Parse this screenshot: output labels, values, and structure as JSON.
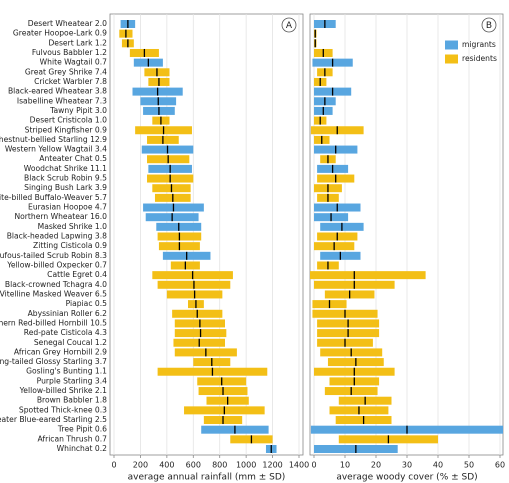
{
  "chart_data": [
    {
      "type": "range-bar",
      "panel": "A",
      "xlabel": "average annual rainfall (mm ± SD)",
      "categories": [
        "Desert Wheatear 2.0",
        "Greater Hoopoe-Lark 0.9",
        "Desert Lark 1.2",
        "Fulvous Babbler 1.2",
        "White Wagtail 0.7",
        "Great Grey Shrike 7.4",
        "Cricket Warbler 7.8",
        "Black-eared Wheatear 3.8",
        "Isabelline Wheatear 7.3",
        "Tawny Pipit 3.0",
        "Desert Cristicola 1.0",
        "Striped Kingfisher 0.9",
        "Chestnut-bellied Starling 12.9",
        "Western Yellow Wagtail 3.4",
        "Anteater Chat 0.5",
        "Woodchat Shrike 11.1",
        "Black Scrub Robin 9.5",
        "Singing Bush Lark 3.9",
        "White-billed Buffalo-Weaver 5.7",
        "Eurasian Hoopoe 4.7",
        "Northern Wheatear 16.0",
        "Masked Shrike 1.0",
        "Black-headed Lapwing 3.8",
        "Zitting Cisticola 0.9",
        "Rufous-tailed Scrub Robin 8.3",
        "Yellow-billed Oxpecker 0.7",
        "Cattle Egret 0.4",
        "Black-crowned Tchagra 4.0",
        "Vitelline Masked Weaver 6.5",
        "Piapiac 0.5",
        "Abyssinian Roller 6.2",
        "Northern Red-billed Hornbill 10.5",
        "Red-pate Cisticola 4.3",
        "Senegal Coucal 1.2",
        "African Grey Hornbill 2.9",
        "Long-tailed Glossy Starling 3.7",
        "Gosling's Bunting 1.1",
        "Purple Starling 3.4",
        "Yellow-billed Shrike 2.1",
        "Brown Babbler 1.8",
        "Spotted Thick-knee 0.3",
        "Greater Blue-eared Starling 2.5",
        "Tree Pipit 0.6",
        "African Thrush 0.7",
        "Whinchat 0.2"
      ],
      "series": [
        {
          "values": [
            105,
            null,
            null,
            null,
            260,
            null,
            null,
            330,
            335,
            340,
            null,
            null,
            null,
            405,
            null,
            425,
            null,
            null,
            null,
            450,
            440,
            490,
            null,
            null,
            550,
            null,
            null,
            null,
            null,
            null,
            null,
            null,
            null,
            null,
            null,
            null,
            null,
            null,
            null,
            null,
            null,
            null,
            915,
            null,
            1190
          ],
          "errors": [
            55,
            null,
            null,
            null,
            110,
            null,
            null,
            190,
            135,
            120,
            null,
            null,
            null,
            195,
            null,
            165,
            null,
            null,
            null,
            230,
            200,
            170,
            null,
            null,
            180,
            null,
            null,
            null,
            null,
            null,
            null,
            null,
            null,
            null,
            null,
            null,
            null,
            null,
            null,
            null,
            null,
            null,
            255,
            null,
            40
          ]
        },
        {
          "values": [
            null,
            90,
            105,
            230,
            null,
            325,
            340,
            null,
            null,
            null,
            355,
            375,
            370,
            null,
            410,
            null,
            425,
            435,
            445,
            null,
            null,
            null,
            495,
            495,
            null,
            540,
            595,
            605,
            610,
            620,
            630,
            650,
            655,
            645,
            695,
            740,
            745,
            815,
            825,
            860,
            835,
            825,
            null,
            1040,
            null
          ],
          "errors": [
            null,
            50,
            45,
            110,
            null,
            95,
            80,
            null,
            null,
            null,
            65,
            215,
            120,
            null,
            160,
            null,
            175,
            145,
            135,
            null,
            null,
            null,
            165,
            155,
            null,
            110,
            305,
            275,
            210,
            60,
            190,
            190,
            195,
            195,
            235,
            140,
            415,
            185,
            185,
            160,
            305,
            145,
            null,
            160,
            null
          ]
        }
      ],
      "xlim": [
        0,
        1400
      ],
      "xticks": [
        0,
        200,
        400,
        600,
        800,
        1000,
        1200,
        1400
      ],
      "grid": true
    },
    {
      "type": "range-bar",
      "panel": "B",
      "xlabel": "average woody cover (% ± SD)",
      "series": [
        {
          "name": "migrants",
          "color": "#58a6e0",
          "values": [
            3.5,
            null,
            null,
            null,
            6,
            null,
            null,
            6,
            3.5,
            3,
            null,
            null,
            null,
            7,
            null,
            6,
            null,
            null,
            null,
            7.5,
            5.5,
            9,
            null,
            null,
            8.5,
            null,
            null,
            null,
            null,
            null,
            null,
            null,
            null,
            null,
            null,
            null,
            null,
            null,
            null,
            null,
            null,
            null,
            30,
            null,
            13.5
          ],
          "errors": [
            3.5,
            null,
            null,
            null,
            6.5,
            null,
            null,
            6,
            3.5,
            3,
            null,
            null,
            null,
            7,
            null,
            5,
            null,
            null,
            null,
            7.5,
            5.5,
            7,
            null,
            null,
            6.5,
            null,
            null,
            null,
            null,
            null,
            null,
            null,
            null,
            null,
            null,
            null,
            null,
            null,
            null,
            null,
            null,
            null,
            31,
            null,
            13.5
          ]
        },
        {
          "name": "residents",
          "color": "#f3bf16",
          "values": [
            null,
            0.4,
            0.4,
            3,
            null,
            3.5,
            2,
            null,
            null,
            null,
            2,
            7.5,
            2.5,
            null,
            4.5,
            null,
            7,
            4.5,
            4.5,
            null,
            null,
            null,
            7.5,
            6.5,
            null,
            4.5,
            13,
            13,
            11.5,
            5,
            10,
            11,
            11,
            10,
            12,
            13.5,
            13,
            13,
            12,
            16.5,
            14.5,
            16,
            null,
            24,
            null
          ],
          "errors": [
            null,
            0.4,
            0.4,
            3,
            null,
            2.5,
            2,
            null,
            null,
            null,
            2,
            8.5,
            2.5,
            null,
            2.5,
            null,
            6,
            4.5,
            3.5,
            null,
            null,
            null,
            6.5,
            6.5,
            null,
            3.5,
            23,
            13,
            8,
            5.5,
            10.5,
            10,
            10,
            9,
            10,
            9,
            13,
            8,
            8.5,
            8.5,
            9.5,
            9,
            null,
            16,
            null
          ]
        }
      ],
      "legend": "upper right",
      "xlim": [
        0,
        60
      ],
      "xticks": [
        0,
        10,
        20,
        30,
        40,
        50,
        60
      ],
      "grid": true
    }
  ]
}
